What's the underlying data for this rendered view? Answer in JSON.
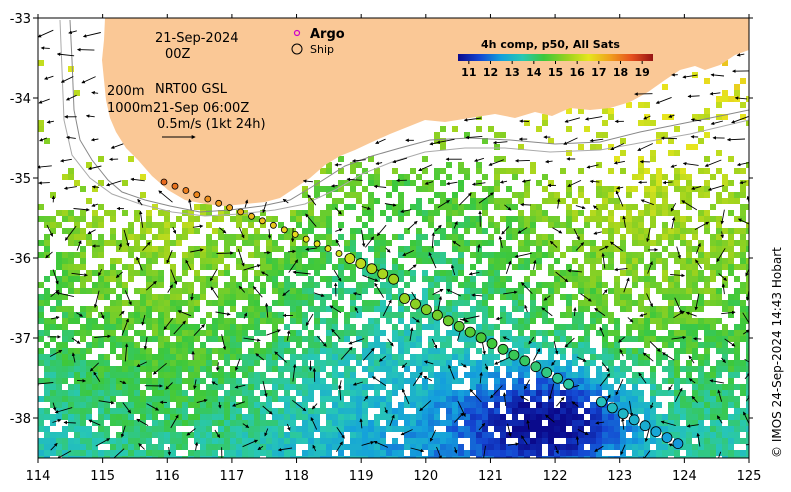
{
  "map": {
    "date_line1": "21-Sep-2024",
    "date_line2": "00Z",
    "contours_label1": "200m",
    "contours_label2": "1000m",
    "product_label": "NRT00 GSL",
    "product_time": "21-Sep 06:00Z",
    "scale_label": "0.5m/s (1kt 24h)",
    "legend": {
      "argo_label": "Argo",
      "ship_label": "Ship",
      "argo_color": "#cc00cc"
    },
    "colorbar": {
      "title": "4h comp, p50, All Sats",
      "ticks": [
        "11",
        "12",
        "13",
        "14",
        "15",
        "16",
        "17",
        "18",
        "19"
      ],
      "min": 10.5,
      "max": 19.5
    },
    "credit": "© IMOS 24-Sep-2024 14:43 Hobart",
    "x_ticks": [
      "114",
      "115",
      "116",
      "117",
      "118",
      "119",
      "120",
      "121",
      "122",
      "123",
      "124",
      "125"
    ],
    "y_ticks": [
      "-33",
      "-34",
      "-35",
      "-36",
      "-37",
      "-38"
    ],
    "lon_range": [
      114,
      125
    ],
    "lat_range": [
      -38.5,
      -33
    ],
    "land_color": "#fac896"
  }
}
